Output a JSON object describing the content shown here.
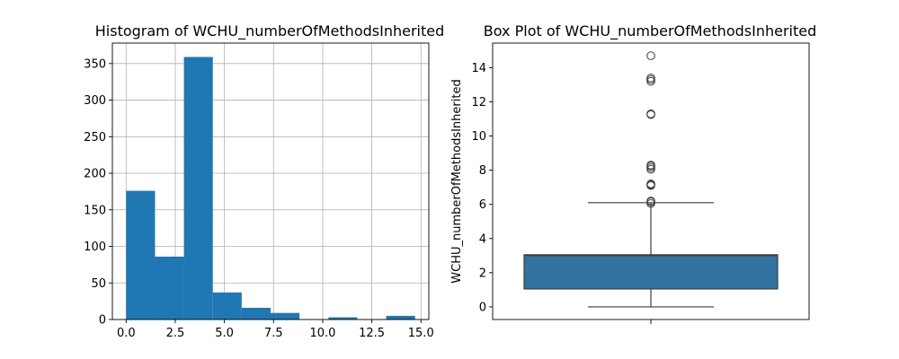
{
  "chart_data": [
    {
      "type": "bar",
      "title": "Histogram of WCHU_numberOfMethodsInherited",
      "xlabel": "",
      "ylabel": "",
      "xlim": [
        -0.7,
        15.4
      ],
      "ylim": [
        0,
        378
      ],
      "grid": true,
      "bin_edges": [
        0.0,
        1.47,
        2.94,
        4.41,
        5.88,
        7.35,
        8.82,
        10.29,
        11.76,
        13.23,
        14.7
      ],
      "values": [
        176,
        86,
        359,
        37,
        16,
        9,
        0,
        3,
        0,
        5
      ],
      "xticks": [
        0.0,
        2.5,
        5.0,
        7.5,
        10.0,
        12.5,
        15.0
      ],
      "xtick_labels": [
        "0.0",
        "2.5",
        "5.0",
        "7.5",
        "10.0",
        "12.5",
        "15.0"
      ],
      "yticks": [
        0,
        50,
        100,
        150,
        200,
        250,
        300,
        350
      ],
      "ytick_labels": [
        "0",
        "50",
        "100",
        "150",
        "200",
        "250",
        "300",
        "350"
      ],
      "color": "#1f77b4"
    },
    {
      "type": "box",
      "title": "Box Plot of WCHU_numberOfMethodsInherited",
      "xlabel": "",
      "ylabel": "WCHU_numberOfMethodsInherited",
      "ylim": [
        -0.74,
        15.44
      ],
      "grid": false,
      "whisker_low": 0.0,
      "q1": 1.05,
      "median": 3.0,
      "q3": 3.05,
      "whisker_high": 6.1,
      "outliers": [
        6.05,
        6.15,
        6.2,
        7.1,
        7.15,
        7.2,
        8.05,
        8.15,
        8.25,
        8.3,
        11.25,
        11.3,
        13.2,
        13.3,
        13.4,
        14.7
      ],
      "yticks": [
        0,
        2,
        4,
        6,
        8,
        10,
        12,
        14
      ],
      "ytick_labels": [
        "0",
        "2",
        "4",
        "6",
        "8",
        "10",
        "12",
        "14"
      ],
      "color": "#3274a1"
    }
  ]
}
